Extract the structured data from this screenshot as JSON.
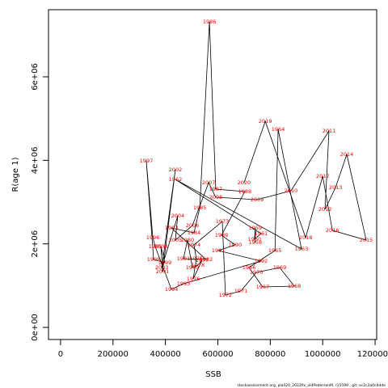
{
  "chart_data": {
    "type": "scatter",
    "x_label": "SSB",
    "y_label": "R(age 1)",
    "footer": "stockassessment.org, pla420_2022fix_oldPedersenM, r15599 , git: ec2c2a0c6dde",
    "point_labels": [
      1958,
      1959,
      1960,
      1961,
      1962,
      1963,
      1964,
      1965,
      1966,
      1967,
      1968,
      1969,
      1970,
      1971,
      1972,
      1973,
      1974,
      1975,
      1976,
      1977,
      1978,
      1979,
      1980,
      1981,
      1982,
      1983,
      1984,
      1985,
      1986,
      1987,
      1988,
      1989,
      1990,
      1991,
      1992,
      1993,
      1994,
      1995,
      1996,
      1997,
      1998,
      1999,
      2000,
      2001,
      2002,
      2003,
      2004,
      2005,
      2006,
      2007,
      2008,
      2009,
      2010,
      2011,
      2012,
      2013,
      2014,
      2015,
      2016,
      2017,
      2018,
      2019,
      2020
    ],
    "x": [
      743000,
      743000,
      740000,
      765000,
      438000,
      919000,
      830000,
      818000,
      719000,
      771000,
      892000,
      836000,
      747000,
      688000,
      629000,
      617000,
      509000,
      518000,
      506000,
      540000,
      524000,
      503000,
      484000,
      469000,
      555000,
      423000,
      509000,
      531000,
      568000,
      592000,
      703000,
      614000,
      666000,
      602000,
      765000,
      469000,
      423000,
      361000,
      352000,
      327000,
      355000,
      398000,
      383000,
      389000,
      438000,
      386000,
      447000,
      438000,
      503000,
      565000,
      592000,
      750000,
      879000,
      1024000,
      1009000,
      1049000,
      1092000,
      1166000,
      1037000,
      1000000,
      935000,
      781000,
      700000
    ],
    "values": [
      2030000,
      2380000,
      2110000,
      2245000,
      3542000,
      1877000,
      4742000,
      1839000,
      1432000,
      968000,
      987000,
      1432000,
      1316000,
      871000,
      774000,
      2535000,
      1974000,
      1645000,
      1161000,
      1606000,
      1490000,
      1432000,
      2090000,
      1645000,
      1626000,
      2380000,
      2264000,
      2864000,
      7316000,
      3310000,
      3251000,
      2206000,
      1974000,
      1839000,
      1587000,
      1045000,
      910000,
      1935000,
      2148000,
      3987000,
      1626000,
      1548000,
      1935000,
      1335000,
      3774000,
      1432000,
      2671000,
      2090000,
      2439000,
      3464000,
      3116000,
      3058000,
      3271000,
      4703000,
      2826000,
      3348000,
      4142000,
      2090000,
      2322000,
      3619000,
      2148000,
      4935000,
      3464000
    ],
    "line_color": "#000000",
    "label_color": "#ff0000",
    "xlim": [
      -46000,
      1206000
    ],
    "ylim": [
      -290000,
      7606000
    ],
    "xticks": [
      0,
      200000,
      400000,
      600000,
      800000,
      1000000,
      1200000
    ],
    "yticks": [
      {
        "value": 0,
        "label": "0e+00"
      },
      {
        "value": 2000000,
        "label": "2e+06"
      },
      {
        "value": 4000000,
        "label": "4e+06"
      },
      {
        "value": 6000000,
        "label": "6e+06"
      }
    ]
  }
}
